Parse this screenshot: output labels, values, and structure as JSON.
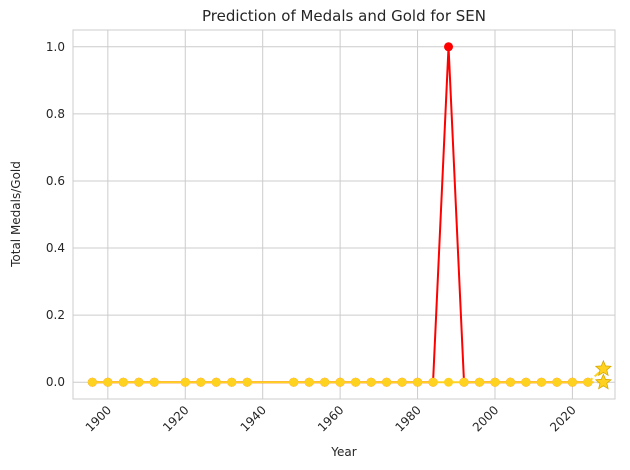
{
  "chart_data": {
    "type": "line",
    "title": "Prediction of Medals and Gold for SEN",
    "xlabel": "Year",
    "ylabel": "Total Medals/Gold",
    "xlim": [
      1891,
      2031
    ],
    "ylim": [
      -0.05,
      1.05
    ],
    "xticks": [
      1900,
      1920,
      1940,
      1960,
      1980,
      2000,
      2020
    ],
    "yticks": [
      "0.0",
      "0.2",
      "0.4",
      "0.6",
      "0.8",
      "1.0"
    ],
    "grid": true,
    "legend": "none",
    "series": [
      {
        "color": "#ff0000",
        "marker": "circle",
        "x": [
          1896,
          1900,
          1904,
          1908,
          1912,
          1920,
          1924,
          1928,
          1932,
          1936,
          1948,
          1952,
          1956,
          1960,
          1964,
          1968,
          1972,
          1976,
          1980,
          1984,
          1988,
          1992,
          1996,
          2000,
          2004,
          2008,
          2012,
          2016,
          2020,
          2024
        ],
        "values": [
          0,
          0,
          0,
          0,
          0,
          0,
          0,
          0,
          0,
          0,
          0,
          0,
          0,
          0,
          0,
          0,
          0,
          0,
          0,
          0,
          1,
          0,
          0,
          0,
          0,
          0,
          0,
          0,
          0,
          0
        ]
      },
      {
        "color": "#ffd21f",
        "marker": "circle",
        "x": [
          1896,
          1900,
          1904,
          1908,
          1912,
          1920,
          1924,
          1928,
          1932,
          1936,
          1948,
          1952,
          1956,
          1960,
          1964,
          1968,
          1972,
          1976,
          1980,
          1984,
          1988,
          1992,
          1996,
          2000,
          2004,
          2008,
          2012,
          2016,
          2020,
          2024
        ],
        "values": [
          0,
          0,
          0,
          0,
          0,
          0,
          0,
          0,
          0,
          0,
          0,
          0,
          0,
          0,
          0,
          0,
          0,
          0,
          0,
          0,
          0,
          0,
          0,
          0,
          0,
          0,
          0,
          0,
          0,
          0
        ]
      }
    ],
    "predictions": [
      {
        "color": "#ffd21f",
        "marker": "star",
        "x": [
          2024,
          2028
        ],
        "values": [
          0,
          0.04
        ]
      },
      {
        "color": "#ffd21f",
        "marker": "star",
        "x": [
          2024,
          2028
        ],
        "values": [
          0,
          0.0
        ]
      }
    ]
  }
}
